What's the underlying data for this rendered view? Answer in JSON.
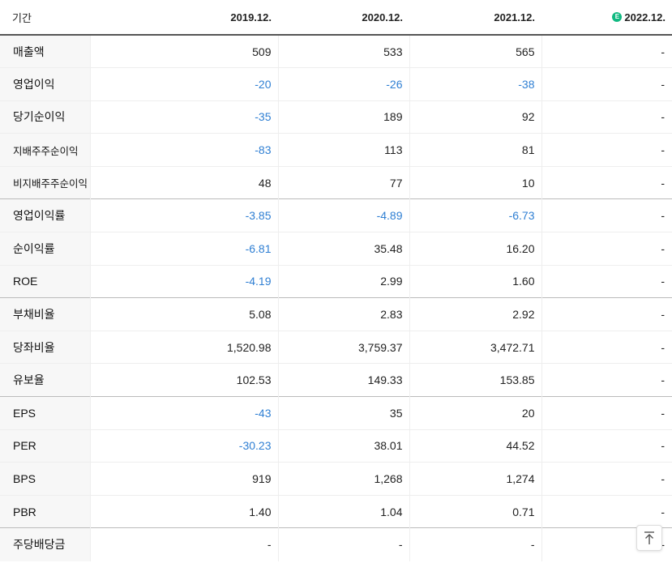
{
  "header": {
    "period_label": "기간",
    "years": [
      "2019.12.",
      "2020.12.",
      "2021.12.",
      "2022.12."
    ],
    "estimate_badge": "E",
    "estimate_color": "#10b981"
  },
  "colors": {
    "negative": "#2f7fd3",
    "text": "#222222",
    "label_bg": "#f7f7f7"
  },
  "rows": [
    {
      "label": "매출액",
      "values": [
        "509",
        "533",
        "565",
        "-"
      ]
    },
    {
      "label": "영업이익",
      "values": [
        "-20",
        "-26",
        "-38",
        "-"
      ]
    },
    {
      "label": "당기순이익",
      "values": [
        "-35",
        "189",
        "92",
        "-"
      ]
    },
    {
      "label": "지배주주순이익",
      "values": [
        "-83",
        "113",
        "81",
        "-"
      ]
    },
    {
      "label": "비지배주주순이익",
      "values": [
        "48",
        "77",
        "10",
        "-"
      ]
    },
    {
      "label": "영업이익률",
      "values": [
        "-3.85",
        "-4.89",
        "-6.73",
        "-"
      ]
    },
    {
      "label": "순이익률",
      "values": [
        "-6.81",
        "35.48",
        "16.20",
        "-"
      ]
    },
    {
      "label": "ROE",
      "values": [
        "-4.19",
        "2.99",
        "1.60",
        "-"
      ]
    },
    {
      "label": "부채비율",
      "values": [
        "5.08",
        "2.83",
        "2.92",
        "-"
      ]
    },
    {
      "label": "당좌비율",
      "values": [
        "1,520.98",
        "3,759.37",
        "3,472.71",
        "-"
      ]
    },
    {
      "label": "유보율",
      "values": [
        "102.53",
        "149.33",
        "153.85",
        "-"
      ]
    },
    {
      "label": "EPS",
      "values": [
        "-43",
        "35",
        "20",
        "-"
      ]
    },
    {
      "label": "PER",
      "values": [
        "-30.23",
        "38.01",
        "44.52",
        "-"
      ]
    },
    {
      "label": "BPS",
      "values": [
        "919",
        "1,268",
        "1,274",
        "-"
      ]
    },
    {
      "label": "PBR",
      "values": [
        "1.40",
        "1.04",
        "0.71",
        "-"
      ]
    },
    {
      "label": "주당배당금",
      "values": [
        "-",
        "-",
        "-",
        "-"
      ]
    }
  ],
  "scroll_top_icon": "arrow-up-to-line-icon"
}
